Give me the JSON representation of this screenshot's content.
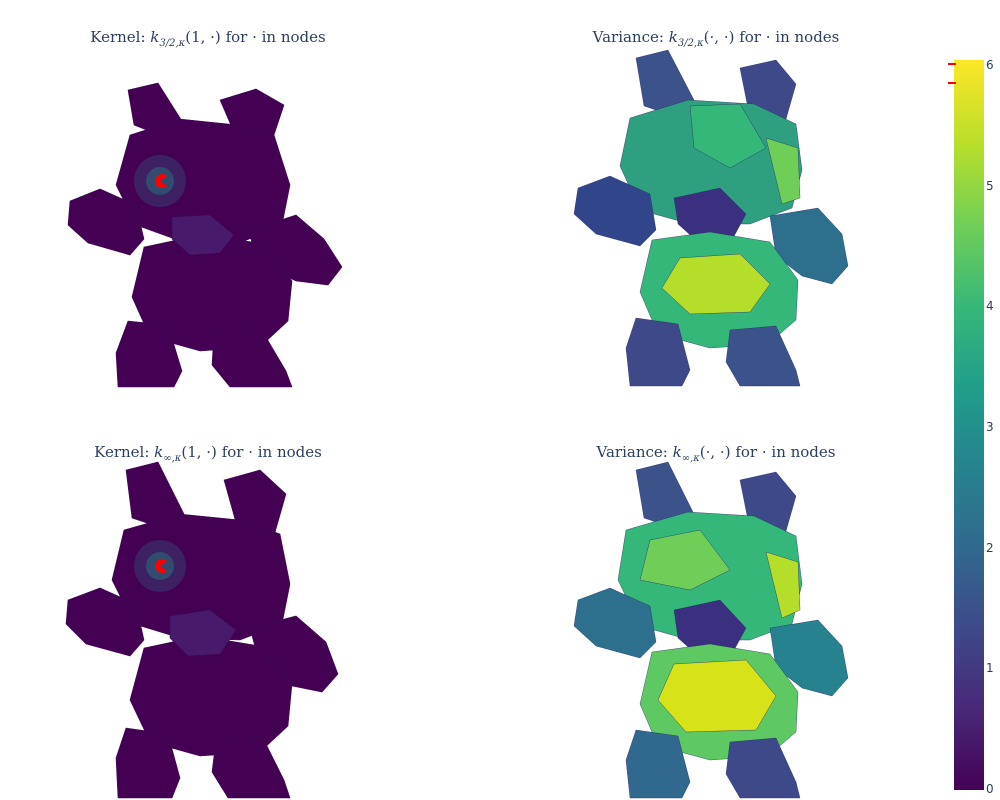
{
  "panels": [
    {
      "name": "kernel-matern",
      "title_prefix": "Kernel:",
      "title_func": "k",
      "title_sub": "3/2,κ",
      "title_args": "(1, ·)",
      "title_suffix": "for  ·  in nodes",
      "coloring": "kernel"
    },
    {
      "name": "variance-matern",
      "title_prefix": "Variance:",
      "title_func": "k",
      "title_sub": "3/2,κ",
      "title_args": "(·, ·)",
      "title_suffix": "for  ·  in nodes",
      "coloring": "variance"
    },
    {
      "name": "kernel-heat",
      "title_prefix": "Kernel:",
      "title_func": "k",
      "title_sub": "∞,κ",
      "title_args": "(1, ·)",
      "title_suffix": "for  ·  in nodes",
      "coloring": "kernel"
    },
    {
      "name": "variance-heat",
      "title_prefix": "Variance:",
      "title_func": "k",
      "title_sub": "∞,κ",
      "title_args": "(·, ·)",
      "title_suffix": "for  ·  in nodes",
      "coloring": "variance"
    }
  ],
  "colorbar": {
    "ticks": [
      "0",
      "1",
      "2",
      "3",
      "4",
      "5",
      "6"
    ],
    "range": [
      0,
      6.05
    ],
    "colorscale": "viridis"
  },
  "marker_color": "#ff0000",
  "colors": {
    "low": "#440154",
    "high": "#fde725",
    "title": "#2a3f5f"
  }
}
